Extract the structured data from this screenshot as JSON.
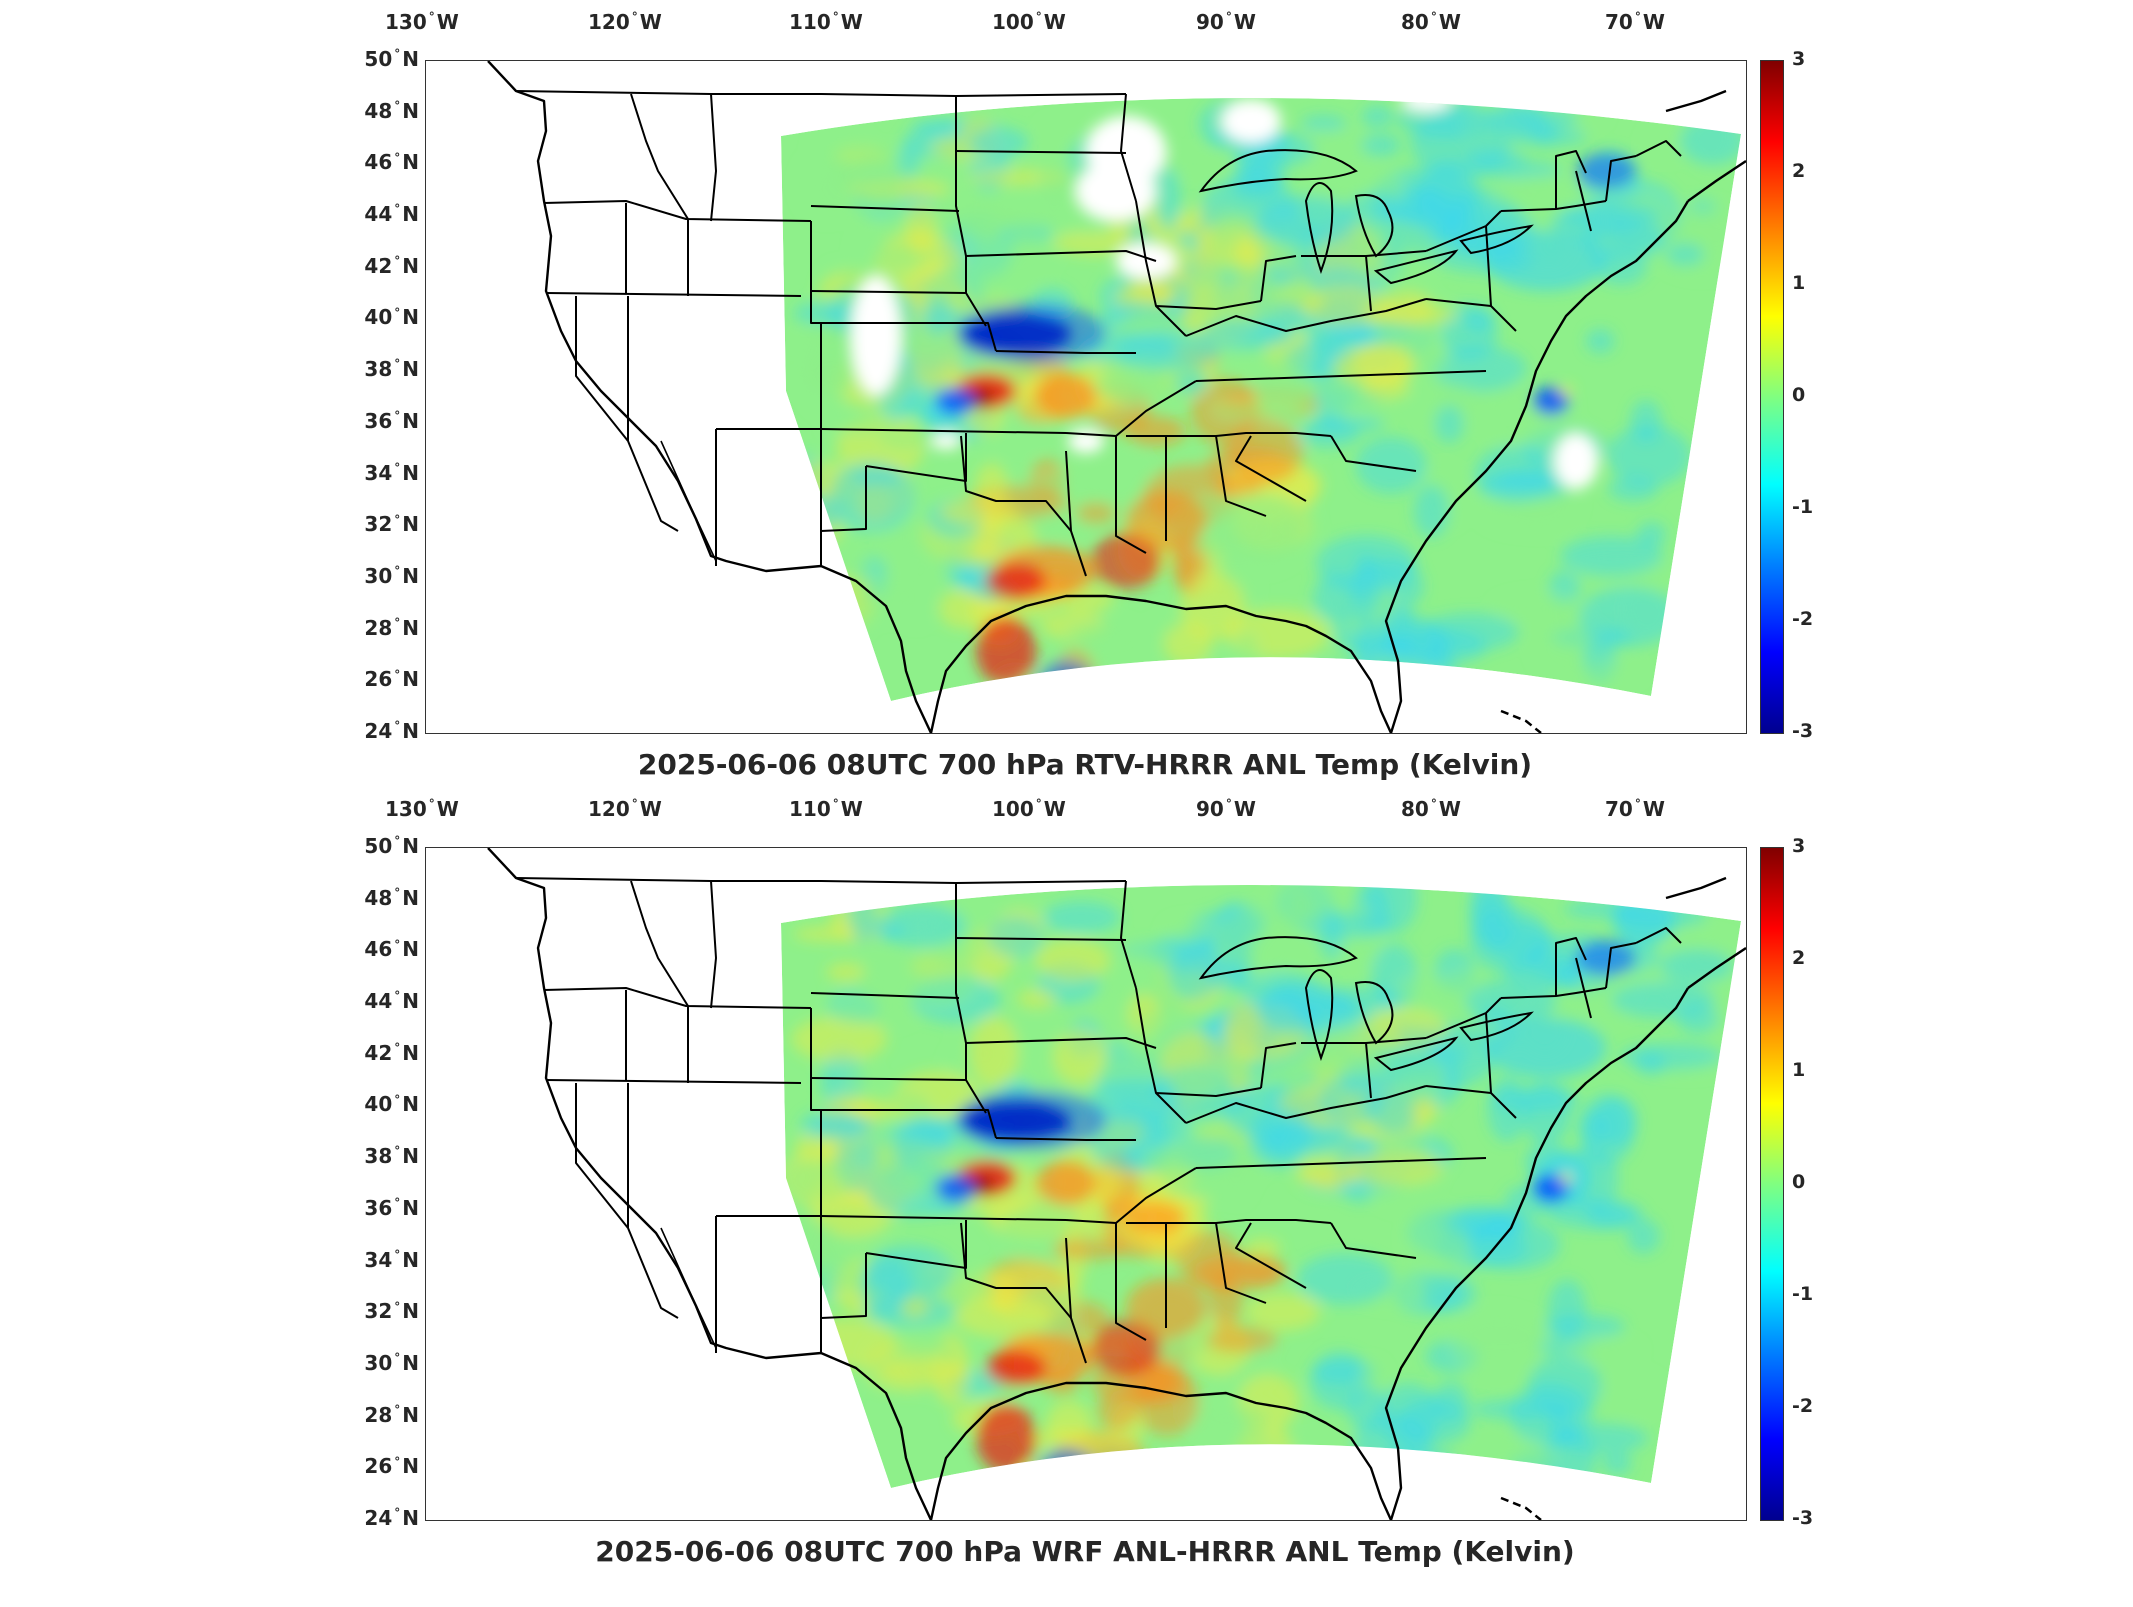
{
  "panels": [
    {
      "title": "2025-06-06 08UTC 700 hPa RTV-HRRR ANL Temp (Kelvin)",
      "lon_ticks": [
        "130",
        "120",
        "110",
        "100",
        "90",
        "80",
        "70"
      ],
      "lon_suffix": "W",
      "lat_ticks": [
        "50",
        "48",
        "46",
        "44",
        "42",
        "40",
        "38",
        "36",
        "34",
        "32",
        "30",
        "28",
        "26",
        "24"
      ],
      "lat_suffix": "N",
      "colorbar_ticks": [
        "3",
        "2",
        "1",
        "0",
        "-1",
        "-2",
        "-3"
      ],
      "has_missing_data_gaps": true
    },
    {
      "title": "2025-06-06 08UTC 700 hPa WRF ANL-HRRR ANL Temp (Kelvin)",
      "lon_ticks": [
        "130",
        "120",
        "110",
        "100",
        "90",
        "80",
        "70"
      ],
      "lon_suffix": "W",
      "lat_ticks": [
        "50",
        "48",
        "46",
        "44",
        "42",
        "40",
        "38",
        "36",
        "34",
        "32",
        "30",
        "28",
        "26",
        "24"
      ],
      "lat_suffix": "N",
      "colorbar_ticks": [
        "3",
        "2",
        "1",
        "0",
        "-1",
        "-2",
        "-3"
      ],
      "has_missing_data_gaps": false
    }
  ],
  "map": {
    "projection": "lambert-conformal",
    "region": "CONUS",
    "lon_range": [
      -130,
      -65
    ],
    "lat_range": [
      24,
      50
    ],
    "colormap": "jet",
    "color_range": [
      -3,
      3
    ],
    "colors": {
      "deep_blue": "#00008f",
      "blue": "#0050ff",
      "cyan": "#3ad6f0",
      "green": "#8ef08a",
      "yellow": "#f5ec40",
      "orange": "#ff8a1a",
      "red": "#e81e10",
      "dark_red": "#8a0000",
      "border": "#000000"
    }
  }
}
